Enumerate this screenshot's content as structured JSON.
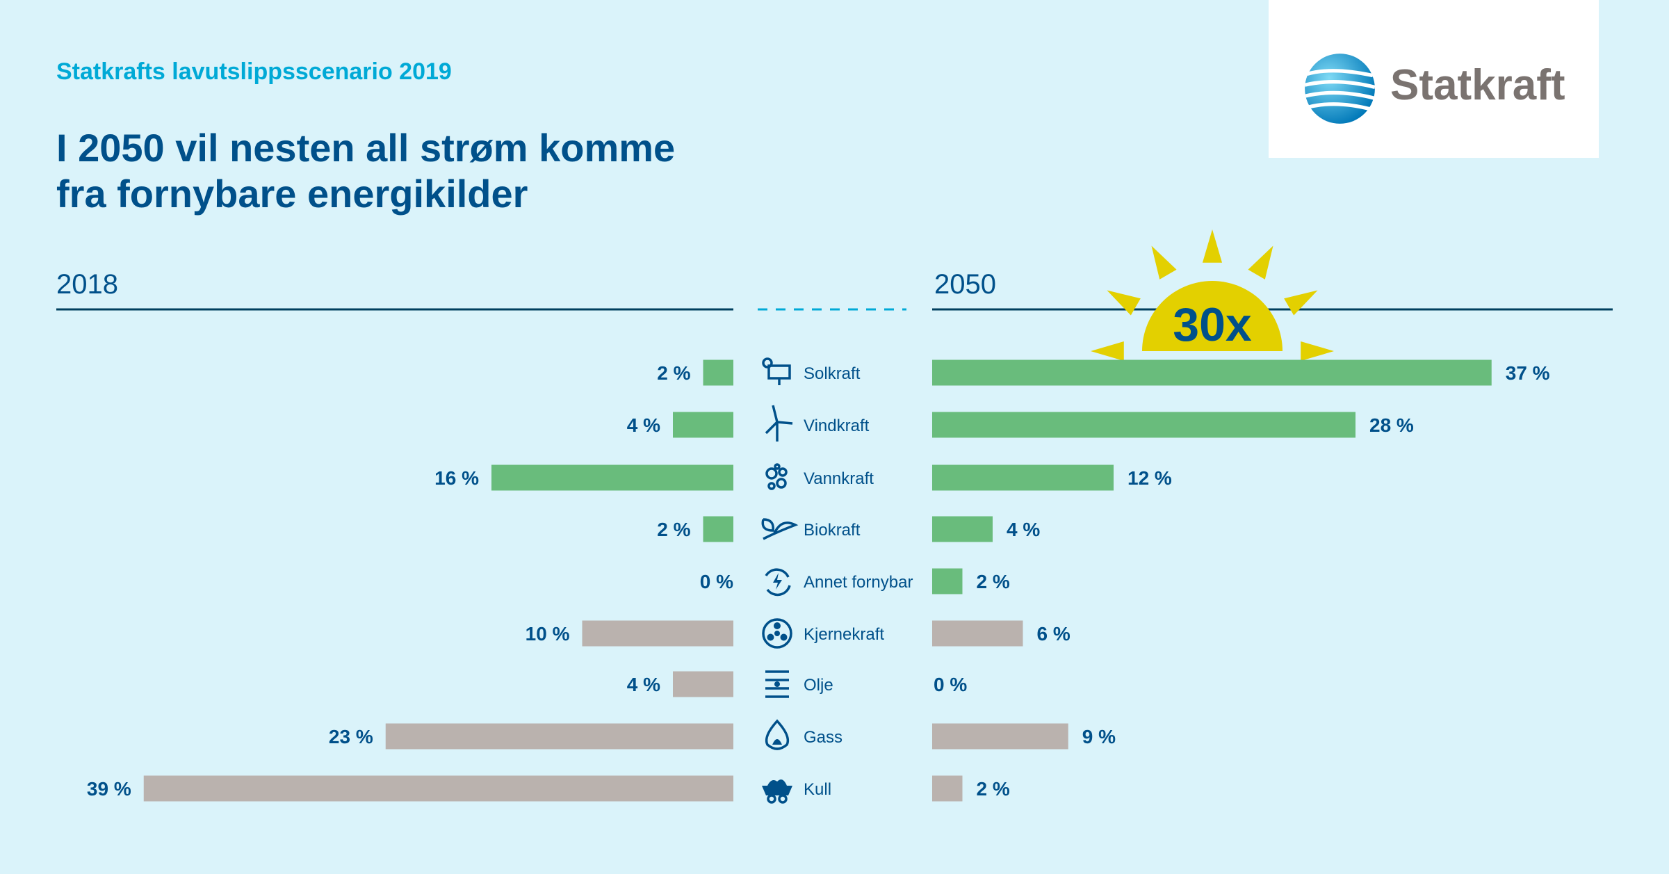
{
  "kicker": "Statkrafts lavutslippsscenario 2019",
  "headline_line1": "I 2050 vil nesten all strøm komme",
  "headline_line2": "fra fornybare energikilder",
  "logo": {
    "text": "Statkraft"
  },
  "sun_badge": "30x",
  "colors": {
    "background": "#daf3fa",
    "renewable": "#69bc7c",
    "non_renewable": "#bab2ae",
    "text": "#00508a",
    "kicker": "#00a9d6",
    "sun": "#e3d000"
  },
  "chart_data": {
    "type": "bar",
    "orientation": "horizontal, back-to-back",
    "categories": [
      "Solkraft",
      "Vindkraft",
      "Vannkraft",
      "Biokraft",
      "Annet fornybar",
      "Kjernekraft",
      "Olje",
      "Gass",
      "Kull"
    ],
    "icons": [
      "solar-panel-icon",
      "wind-turbine-icon",
      "water-drops-icon",
      "leaf-icon",
      "recycle-lightning-icon",
      "nuclear-icon",
      "oil-barrel-icon",
      "gas-flame-icon",
      "coal-cart-icon"
    ],
    "renewable": [
      true,
      true,
      true,
      true,
      true,
      false,
      false,
      false,
      false
    ],
    "unit": "%",
    "series": [
      {
        "name": "2018",
        "values": [
          2,
          4,
          16,
          2,
          0,
          10,
          4,
          23,
          39
        ]
      },
      {
        "name": "2050",
        "values": [
          37,
          28,
          12,
          4,
          2,
          6,
          0,
          9,
          2
        ]
      }
    ],
    "grid": false
  }
}
